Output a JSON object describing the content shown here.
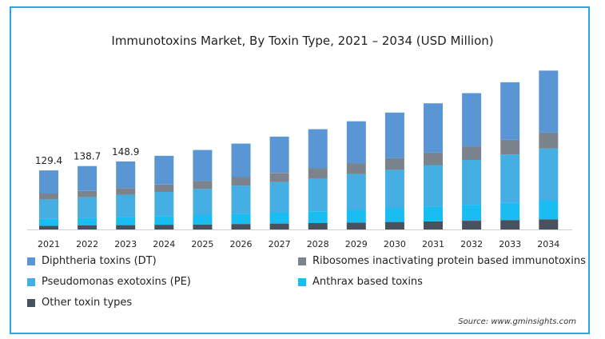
{
  "chart_data": {
    "type": "bar",
    "stacked": true,
    "title": "Immunotoxins Market, By Toxin Type, 2021 – 2034 (USD Million)",
    "categories": [
      "2021",
      "2022",
      "2023",
      "2024",
      "2025",
      "2026",
      "2027",
      "2028",
      "2029",
      "2030",
      "2031",
      "2032",
      "2033",
      "2034"
    ],
    "series": [
      {
        "name": "Other toxin types",
        "color": "#48525f",
        "values": [
          8.2,
          8.8,
          9.5,
          10.3,
          11.1,
          12.0,
          13.0,
          14.1,
          15.2,
          16.4,
          17.7,
          19.1,
          20.6,
          22.3
        ]
      },
      {
        "name": "Anthrax based toxins",
        "color": "#19bdf2",
        "values": [
          15.1,
          16.2,
          17.4,
          18.9,
          20.4,
          22.0,
          23.8,
          25.7,
          27.7,
          29.9,
          32.3,
          34.9,
          37.7,
          40.7
        ]
      },
      {
        "name": "Pseudomonas exotoxins (PE)",
        "color": "#45aee2",
        "values": [
          42.5,
          45.6,
          49.0,
          53.0,
          57.3,
          61.9,
          66.8,
          72.2,
          77.9,
          84.2,
          90.9,
          98.2,
          106.1,
          114.5
        ]
      },
      {
        "name": "Ribosomes inactivating protein based immunotoxins",
        "color": "#7b848c",
        "values": [
          12.9,
          13.8,
          14.8,
          16.0,
          17.3,
          18.7,
          20.2,
          21.8,
          23.5,
          25.4,
          27.4,
          29.6,
          32.0,
          34.5
        ]
      },
      {
        "name": "Diphtheria toxins (DT)",
        "color": "#5b96d4",
        "values": [
          50.7,
          54.3,
          58.2,
          62.9,
          67.9,
          73.4,
          79.3,
          85.6,
          92.5,
          99.9,
          107.8,
          116.5,
          125.8,
          135.8
        ]
      }
    ],
    "data_labels": [
      {
        "category": "2021",
        "text": "129.4"
      },
      {
        "category": "2022",
        "text": "138.7"
      },
      {
        "category": "2023",
        "text": "148.9"
      }
    ],
    "legend": {
      "placement": "bottom",
      "order": [
        "Diphtheria toxins (DT)",
        "Ribosomes inactivating protein based immunotoxins",
        "Pseudomonas exotoxins (PE)",
        "Anthrax based toxins",
        "Other toxin types"
      ]
    },
    "ylim": [
      0,
      350
    ],
    "grid": false,
    "source": "Source: www.gminsights.com"
  }
}
